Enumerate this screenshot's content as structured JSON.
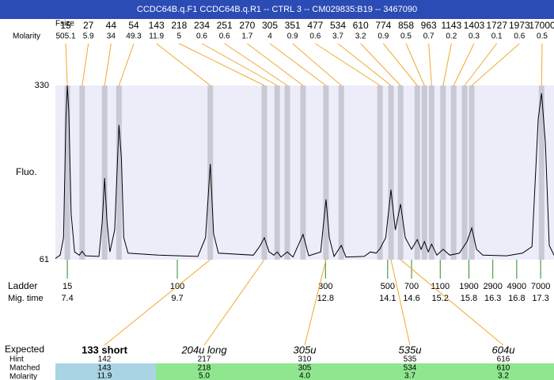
{
  "header": {
    "title": "CCDC64B.q.F1  CCDC64B.q.R1 -- CTRL 3 -- CM029835:B19 -- 3467090"
  },
  "chart_data": {
    "type": "electropherogram",
    "y_label": "Fluo.",
    "size_label": "Fsize",
    "molarity_label": "Molarity",
    "ylim": [
      61,
      330
    ],
    "yticks": [
      61,
      330
    ],
    "xlim": [
      7.15,
      17.58
    ],
    "peaks": {
      "sizes": [
        15,
        27,
        44,
        54,
        143,
        218,
        234,
        251,
        270,
        305,
        351,
        477,
        534,
        610,
        774,
        858,
        963,
        1143,
        1403,
        1727,
        1973,
        17000
      ],
      "molarity": [
        505.1,
        5.9,
        34,
        49.3,
        11.9,
        5,
        0.6,
        0.6,
        1.7,
        4,
        0.9,
        0.6,
        3.7,
        3.2,
        0.9,
        0.5,
        0.7,
        0.2,
        0.3,
        0.1,
        0.6,
        0.5
      ],
      "x": [
        7.4,
        7.71,
        8.18,
        8.48,
        10.39,
        11.52,
        11.79,
        12.0,
        12.33,
        12.81,
        13.13,
        13.94,
        14.17,
        14.37,
        14.72,
        14.87,
        15.02,
        15.26,
        15.48,
        15.71,
        15.86,
        17.32
      ]
    },
    "trace": {
      "x": [
        7.15,
        7.25,
        7.32,
        7.37,
        7.4,
        7.43,
        7.48,
        7.55,
        7.65,
        7.71,
        7.78,
        8.06,
        8.13,
        8.18,
        8.23,
        8.29,
        8.39,
        8.48,
        8.53,
        8.58,
        8.67,
        9.3,
        10.13,
        10.29,
        10.39,
        10.46,
        10.56,
        11.29,
        11.42,
        11.52,
        11.62,
        11.72,
        11.79,
        11.87,
        12.0,
        12.12,
        12.33,
        12.45,
        12.7,
        12.81,
        12.88,
        12.98,
        13.13,
        13.23,
        13.61,
        13.74,
        13.86,
        13.94,
        14.06,
        14.17,
        14.26,
        14.37,
        14.47,
        14.6,
        14.72,
        14.8,
        14.87,
        14.95,
        15.02,
        15.13,
        15.26,
        15.4,
        15.6,
        15.76,
        15.86,
        15.96,
        16.09,
        16.59,
        16.92,
        17.12,
        17.25,
        17.32,
        17.4,
        17.48,
        17.58
      ],
      "y": [
        63,
        68,
        95,
        279,
        330,
        291,
        132,
        73,
        68,
        74,
        67,
        66,
        120,
        187,
        120,
        73,
        107,
        269,
        218,
        95,
        71,
        68,
        66,
        95,
        209,
        101,
        71,
        68,
        81,
        95,
        73,
        68,
        73,
        65,
        73,
        65,
        100,
        67,
        73,
        154,
        95,
        66,
        83,
        65,
        66,
        73,
        71,
        78,
        95,
        169,
        107,
        147,
        95,
        77,
        92,
        77,
        89,
        73,
        85,
        68,
        77,
        68,
        71,
        89,
        110,
        77,
        68,
        67,
        71,
        81,
        279,
        318,
        242,
        83,
        68
      ]
    },
    "ladder": {
      "label": "Ladder",
      "time_label": "Mig. time",
      "sizes": [
        15,
        100,
        300,
        500,
        700,
        1100,
        1900,
        2900,
        4900,
        7000
      ],
      "x": [
        7.4,
        9.7,
        12.8,
        14.1,
        14.6,
        15.2,
        15.8,
        16.3,
        16.8,
        17.3
      ]
    },
    "expected": {
      "label": "Expected",
      "row_labels": [
        "Hint",
        "Matched",
        "Molarity"
      ],
      "columns": [
        {
          "name": "133 short",
          "hint": "142",
          "matched": "143",
          "molarity": "11.9"
        },
        {
          "name": "204u long",
          "hint": "217",
          "matched": "218",
          "molarity": "5.0"
        },
        {
          "name": "305u",
          "hint": "310",
          "matched": "305",
          "molarity": "4.0"
        },
        {
          "name": "535u",
          "hint": "535",
          "matched": "534",
          "molarity": "3.7"
        },
        {
          "name": "604u",
          "hint": "616",
          "matched": "610",
          "molarity": "3.2"
        }
      ]
    }
  }
}
